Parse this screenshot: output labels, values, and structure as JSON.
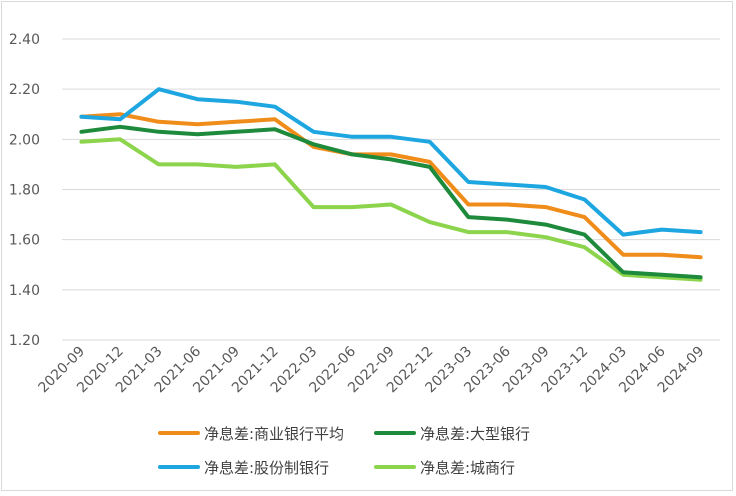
{
  "chart_data": {
    "type": "line",
    "title": "",
    "xlabel": "",
    "ylabel": "",
    "ylim": [
      1.2,
      2.4
    ],
    "yticks": [
      "1.20",
      "1.40",
      "1.60",
      "1.80",
      "2.00",
      "2.20",
      "2.40"
    ],
    "grid": "horizontal",
    "legend_position": "bottom",
    "categories": [
      "2020-09",
      "2020-12",
      "2021-03",
      "2021-06",
      "2021-09",
      "2021-12",
      "2022-03",
      "2022-06",
      "2022-09",
      "2022-12",
      "2023-03",
      "2023-06",
      "2023-09",
      "2023-12",
      "2024-03",
      "2024-06",
      "2024-09"
    ],
    "series": [
      {
        "name": "净息差:商业银行平均",
        "color": "#f08c1a",
        "values": [
          2.09,
          2.1,
          2.07,
          2.06,
          2.07,
          2.08,
          1.97,
          1.94,
          1.94,
          1.91,
          1.74,
          1.74,
          1.73,
          1.69,
          1.54,
          1.54,
          1.53
        ]
      },
      {
        "name": "净息差:大型银行",
        "color": "#1e8a3c",
        "values": [
          2.03,
          2.05,
          2.03,
          2.02,
          2.03,
          2.04,
          1.98,
          1.94,
          1.92,
          1.89,
          1.69,
          1.68,
          1.66,
          1.62,
          1.47,
          1.46,
          1.45
        ]
      },
      {
        "name": "净息差:股份制银行",
        "color": "#1ea6e0",
        "values": [
          2.09,
          2.08,
          2.2,
          2.16,
          2.15,
          2.13,
          2.03,
          2.01,
          2.01,
          1.99,
          1.83,
          1.82,
          1.81,
          1.76,
          1.62,
          1.64,
          1.63
        ]
      },
      {
        "name": "净息差:城商行",
        "color": "#8cd44c",
        "values": [
          1.99,
          2.0,
          1.9,
          1.9,
          1.89,
          1.9,
          1.73,
          1.73,
          1.74,
          1.67,
          1.63,
          1.63,
          1.61,
          1.57,
          1.46,
          1.45,
          1.44
        ]
      }
    ]
  }
}
